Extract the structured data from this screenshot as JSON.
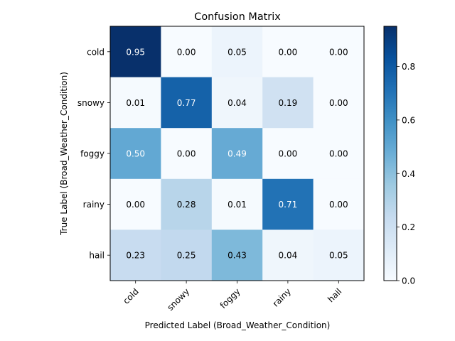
{
  "chart_data": {
    "type": "heatmap",
    "title": "Confusion Matrix",
    "xlabel": "Predicted Label (Broad_Weather_Condition)",
    "ylabel": "True Label (Broad_Weather_Condition)",
    "x_categories": [
      "cold",
      "snowy",
      "foggy",
      "rainy",
      "hail"
    ],
    "y_categories": [
      "cold",
      "snowy",
      "foggy",
      "rainy",
      "hail"
    ],
    "values": [
      [
        0.95,
        0.0,
        0.05,
        0.0,
        0.0
      ],
      [
        0.01,
        0.77,
        0.04,
        0.19,
        0.0
      ],
      [
        0.5,
        0.0,
        0.49,
        0.0,
        0.0
      ],
      [
        0.0,
        0.28,
        0.01,
        0.71,
        0.0
      ],
      [
        0.23,
        0.25,
        0.43,
        0.04,
        0.05
      ]
    ],
    "colorbar": {
      "colormap": "Blues",
      "range": [
        0.0,
        0.95
      ],
      "ticks": [
        0.0,
        0.2,
        0.4,
        0.6,
        0.8
      ]
    }
  }
}
